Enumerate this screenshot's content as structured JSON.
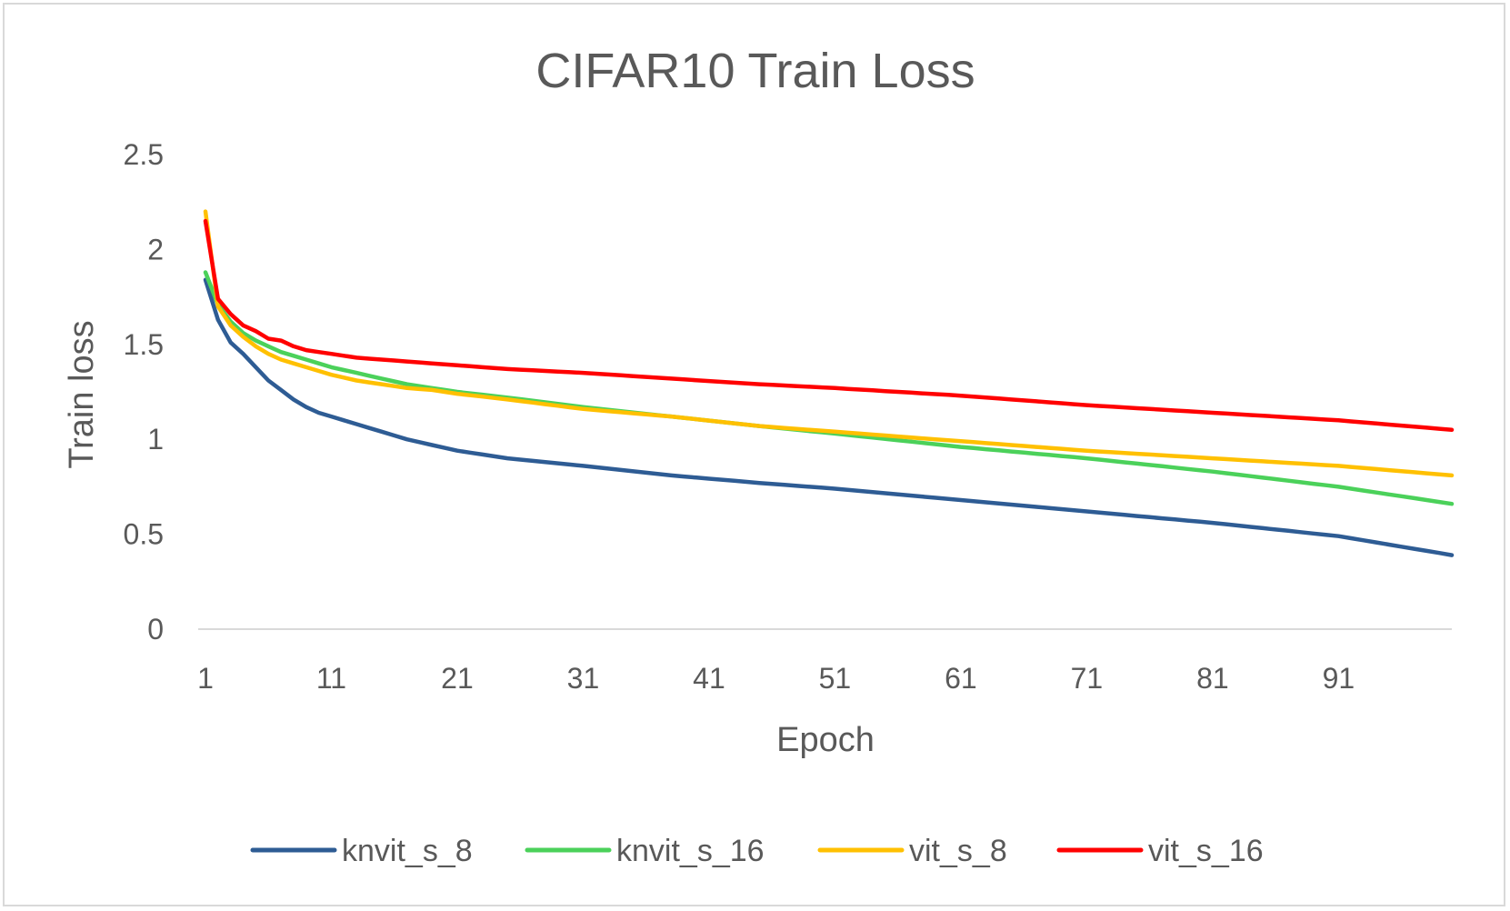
{
  "chart_data": {
    "type": "line",
    "title": "CIFAR10 Train Loss",
    "xlabel": "Epoch",
    "ylabel": "Train loss",
    "x_ticks": [
      "1",
      "11",
      "21",
      "31",
      "41",
      "51",
      "61",
      "71",
      "81",
      "91"
    ],
    "y_ticks": [
      "0",
      "0.5",
      "1",
      "1.5",
      "2",
      "2.5"
    ],
    "xlim": [
      1,
      100
    ],
    "ylim": [
      0,
      2.5
    ],
    "grid": false,
    "legend_position": "bottom",
    "x_keyframes": [
      1,
      2,
      3,
      4,
      5,
      6,
      7,
      8,
      9,
      10,
      11,
      13,
      15,
      17,
      19,
      21,
      25,
      31,
      38,
      45,
      51,
      61,
      71,
      81,
      91,
      100
    ],
    "series": [
      {
        "name": "knvit_s_8",
        "color": "#2E5C94",
        "values": [
          1.84,
          1.63,
          1.51,
          1.45,
          1.38,
          1.31,
          1.26,
          1.21,
          1.17,
          1.14,
          1.12,
          1.08,
          1.04,
          1.0,
          0.97,
          0.94,
          0.9,
          0.86,
          0.81,
          0.77,
          0.74,
          0.68,
          0.62,
          0.56,
          0.49,
          0.39
        ]
      },
      {
        "name": "knvit_s_16",
        "color": "#4BD15A",
        "values": [
          1.88,
          1.71,
          1.62,
          1.56,
          1.52,
          1.49,
          1.46,
          1.44,
          1.42,
          1.4,
          1.38,
          1.35,
          1.32,
          1.29,
          1.27,
          1.25,
          1.22,
          1.17,
          1.12,
          1.07,
          1.03,
          0.96,
          0.9,
          0.83,
          0.75,
          0.66
        ]
      },
      {
        "name": "vit_s_8",
        "color": "#FFC000",
        "values": [
          2.2,
          1.7,
          1.6,
          1.54,
          1.49,
          1.45,
          1.42,
          1.4,
          1.38,
          1.36,
          1.34,
          1.31,
          1.29,
          1.27,
          1.26,
          1.24,
          1.21,
          1.16,
          1.12,
          1.07,
          1.04,
          0.99,
          0.94,
          0.9,
          0.86,
          0.81
        ]
      },
      {
        "name": "vit_s_16",
        "color": "#FF0000",
        "values": [
          2.15,
          1.74,
          1.66,
          1.6,
          1.57,
          1.53,
          1.52,
          1.49,
          1.47,
          1.46,
          1.45,
          1.43,
          1.42,
          1.41,
          1.4,
          1.39,
          1.37,
          1.35,
          1.32,
          1.29,
          1.27,
          1.23,
          1.18,
          1.14,
          1.1,
          1.05
        ]
      }
    ]
  }
}
